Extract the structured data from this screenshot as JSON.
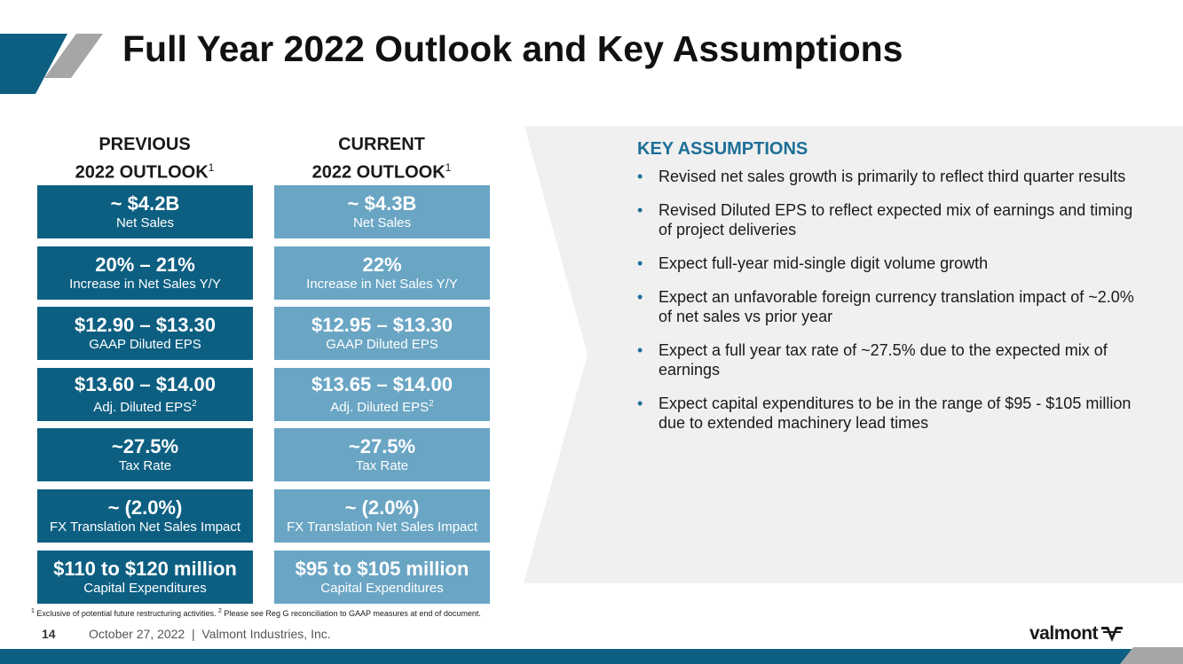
{
  "title": "Full Year 2022 Outlook and Key Assumptions",
  "previous": {
    "heading_line1": "PREVIOUS",
    "heading_line2": "2022 OUTLOOK",
    "heading_sup": "1",
    "items": [
      {
        "value": "~ $4.2B",
        "label": "Net Sales",
        "sup": ""
      },
      {
        "value": "20% – 21%",
        "label": "Increase in Net Sales Y/Y",
        "sup": ""
      },
      {
        "value": "$12.90 – $13.30",
        "label": "GAAP Diluted EPS",
        "sup": ""
      },
      {
        "value": "$13.60 – $14.00",
        "label": "Adj. Diluted EPS",
        "sup": "2"
      },
      {
        "value": "~27.5%",
        "label": "Tax Rate",
        "sup": ""
      },
      {
        "value": "~ (2.0%)",
        "label": "FX Translation Net Sales Impact",
        "sup": ""
      },
      {
        "value": "$110 to $120 million",
        "label": "Capital Expenditures",
        "sup": ""
      }
    ]
  },
  "current": {
    "heading_line1": "CURRENT",
    "heading_line2": "2022 OUTLOOK",
    "heading_sup": "1",
    "items": [
      {
        "value": "~ $4.3B",
        "label": "Net Sales",
        "sup": ""
      },
      {
        "value": "22%",
        "label": "Increase in Net Sales Y/Y",
        "sup": ""
      },
      {
        "value": "$12.95 – $13.30",
        "label": "GAAP Diluted EPS",
        "sup": ""
      },
      {
        "value": "$13.65 – $14.00",
        "label": "Adj. Diluted EPS",
        "sup": "2"
      },
      {
        "value": "~27.5%",
        "label": "Tax Rate",
        "sup": ""
      },
      {
        "value": "~ (2.0%)",
        "label": "FX Translation Net Sales Impact",
        "sup": ""
      },
      {
        "value": "$95 to $105 million",
        "label": "Capital Expenditures",
        "sup": ""
      }
    ]
  },
  "key_assumptions": {
    "title": "KEY ASSUMPTIONS",
    "bullet_char": "•",
    "items": [
      "Revised net sales growth is primarily to reflect third quarter results",
      "Revised Diluted EPS to reflect expected mix of earnings and timing of project deliveries",
      "Expect full-year mid-single digit volume growth",
      "Expect an unfavorable foreign currency translation impact of ~2.0% of net sales vs prior year",
      "Expect a full year tax rate of ~27.5% due to the expected mix of earnings",
      "Expect capital expenditures to be in the range of $95 - $105 million due to extended machinery lead times"
    ]
  },
  "footnote": {
    "sup1": "1",
    "text1": " Exclusive of potential future restructuring activities. ",
    "sup2": "2",
    "text2": " Please see Reg G reconciliation to GAAP measures at end of document."
  },
  "footer": {
    "page_number": "14",
    "text": "October 27, 2022  |  Valmont Industries, Inc."
  },
  "logo": {
    "text": "valmont"
  },
  "colors": {
    "previous_box": "#0d5f82",
    "current_box": "#6aa5c4",
    "accent": "#1d6f98",
    "bar": "#0d5f82",
    "panel": "#f0f0f0"
  }
}
